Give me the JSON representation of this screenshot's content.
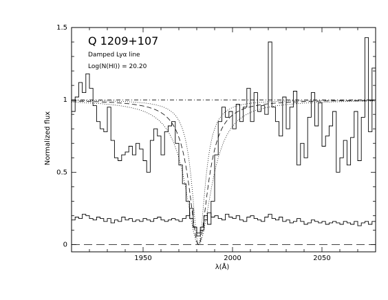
{
  "chart_data": {
    "type": "line",
    "title": "Q  1209+107",
    "annotations": [
      "Damped Lyα line",
      "Log(N(HI)) = 20.20"
    ],
    "xlabel": "λ(Å)",
    "ylabel": "Normalized flux",
    "xlim": [
      1910,
      2080
    ],
    "ylim": [
      -0.05,
      1.5
    ],
    "xticks": [
      1950,
      2000,
      2050
    ],
    "yticks": [
      0,
      0.5,
      1,
      1.5
    ],
    "ytick_labels": [
      "0",
      "0.5",
      "1",
      "1.5"
    ],
    "grid": false,
    "series": [
      {
        "style": "histogram",
        "x": [
          1910,
          1912,
          1914,
          1916,
          1918,
          1920,
          1922,
          1924,
          1926,
          1928,
          1930,
          1932,
          1934,
          1936,
          1938,
          1940,
          1942,
          1944,
          1946,
          1948,
          1950,
          1952,
          1954,
          1956,
          1958,
          1960,
          1962,
          1964,
          1966,
          1968,
          1970,
          1972,
          1974,
          1976,
          1978,
          1980,
          1982,
          1984,
          1986,
          1988,
          1990,
          1992,
          1994,
          1996,
          1998,
          2000,
          2002,
          2004,
          2006,
          2008,
          2010,
          2012,
          2014,
          2016,
          2018,
          2020,
          2022,
          2024,
          2026,
          2028,
          2030,
          2032,
          2034,
          2036,
          2038,
          2040,
          2042,
          2044,
          2046,
          2048,
          2050,
          2052,
          2054,
          2056,
          2058,
          2060,
          2062,
          2064,
          2066,
          2068,
          2070,
          2072,
          2074,
          2076,
          2078
        ],
        "values": [
          0.92,
          1.02,
          1.12,
          1.05,
          1.18,
          1.08,
          0.96,
          0.85,
          0.8,
          0.78,
          0.95,
          0.72,
          0.6,
          0.58,
          0.62,
          0.64,
          0.68,
          0.62,
          0.7,
          0.66,
          0.58,
          0.5,
          0.72,
          0.8,
          0.75,
          0.62,
          0.78,
          0.82,
          0.85,
          0.7,
          0.55,
          0.42,
          0.3,
          0.18,
          0.12,
          0.06,
          0.1,
          0.2,
          0.14,
          0.3,
          0.62,
          0.85,
          0.95,
          0.88,
          0.92,
          0.8,
          0.97,
          0.85,
          0.95,
          1.08,
          0.85,
          1.05,
          0.92,
          0.96,
          0.9,
          1.4,
          0.95,
          0.85,
          0.75,
          1.02,
          0.8,
          0.95,
          1.06,
          0.55,
          0.7,
          0.6,
          0.88,
          1.05,
          0.82,
          0.98,
          0.68,
          0.75,
          0.82,
          0.92,
          0.5,
          0.6,
          0.72,
          0.55,
          0.74,
          0.92,
          0.58,
          0.88,
          1.43,
          0.78,
          1.22
        ]
      },
      {
        "style": "histogram",
        "x": [
          1910,
          1912,
          1914,
          1916,
          1918,
          1920,
          1922,
          1924,
          1926,
          1928,
          1930,
          1932,
          1934,
          1936,
          1938,
          1940,
          1942,
          1944,
          1946,
          1948,
          1950,
          1952,
          1954,
          1956,
          1958,
          1960,
          1962,
          1964,
          1966,
          1968,
          1970,
          1972,
          1974,
          1976,
          1978,
          1980,
          1982,
          1984,
          1986,
          1988,
          1990,
          1992,
          1994,
          1996,
          1998,
          2000,
          2002,
          2004,
          2006,
          2008,
          2010,
          2012,
          2014,
          2016,
          2018,
          2020,
          2022,
          2024,
          2026,
          2028,
          2030,
          2032,
          2034,
          2036,
          2038,
          2040,
          2042,
          2044,
          2046,
          2048,
          2050,
          2052,
          2054,
          2056,
          2058,
          2060,
          2062,
          2064,
          2066,
          2068,
          2070,
          2072,
          2074,
          2076,
          2078
        ],
        "values": [
          0.17,
          0.19,
          0.18,
          0.21,
          0.2,
          0.18,
          0.17,
          0.19,
          0.18,
          0.16,
          0.18,
          0.15,
          0.17,
          0.16,
          0.19,
          0.17,
          0.18,
          0.16,
          0.17,
          0.16,
          0.18,
          0.17,
          0.16,
          0.18,
          0.19,
          0.17,
          0.16,
          0.17,
          0.18,
          0.17,
          0.16,
          0.18,
          0.2,
          0.25,
          0.12,
          0.08,
          0.12,
          0.17,
          0.22,
          0.19,
          0.2,
          0.18,
          0.17,
          0.21,
          0.19,
          0.18,
          0.2,
          0.17,
          0.16,
          0.19,
          0.2,
          0.18,
          0.17,
          0.16,
          0.19,
          0.21,
          0.18,
          0.17,
          0.19,
          0.16,
          0.17,
          0.15,
          0.16,
          0.18,
          0.16,
          0.14,
          0.15,
          0.17,
          0.16,
          0.15,
          0.16,
          0.14,
          0.15,
          0.16,
          0.15,
          0.14,
          0.16,
          0.15,
          0.14,
          0.16,
          0.13,
          0.15,
          0.16,
          0.14,
          0.16
        ]
      },
      {
        "style": "dash-dot",
        "x": [
          1910,
          2080
        ],
        "values": [
          1.0,
          1.0
        ]
      },
      {
        "style": "long-dash",
        "x": [
          1910,
          2080
        ],
        "values": [
          0.0,
          0.0
        ]
      },
      {
        "style": "dash",
        "profile": {
          "center": 1981,
          "depth": 1.0,
          "width": 6.5
        }
      },
      {
        "style": "dotted",
        "profile": {
          "center": 1981,
          "depth": 1.0,
          "width": 9.0
        }
      },
      {
        "style": "dotted",
        "profile": {
          "center": 1981,
          "depth": 1.0,
          "width": 4.5
        }
      }
    ]
  }
}
